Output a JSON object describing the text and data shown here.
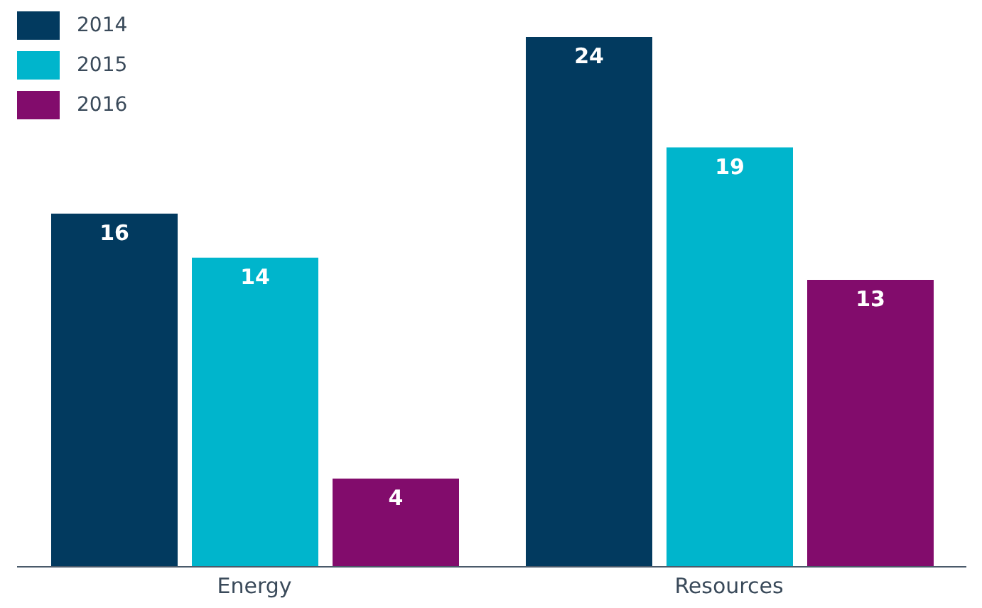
{
  "chart_data": {
    "type": "bar",
    "categories": [
      "Energy",
      "Resources"
    ],
    "series": [
      {
        "name": "2014",
        "color": "#023a5f",
        "values": [
          16,
          24
        ]
      },
      {
        "name": "2015",
        "color": "#00b5cc",
        "values": [
          14,
          19
        ]
      },
      {
        "name": "2016",
        "color": "#820c6c",
        "values": [
          4,
          13
        ]
      }
    ],
    "data_labels": true,
    "legend": "top left",
    "grid": false
  }
}
